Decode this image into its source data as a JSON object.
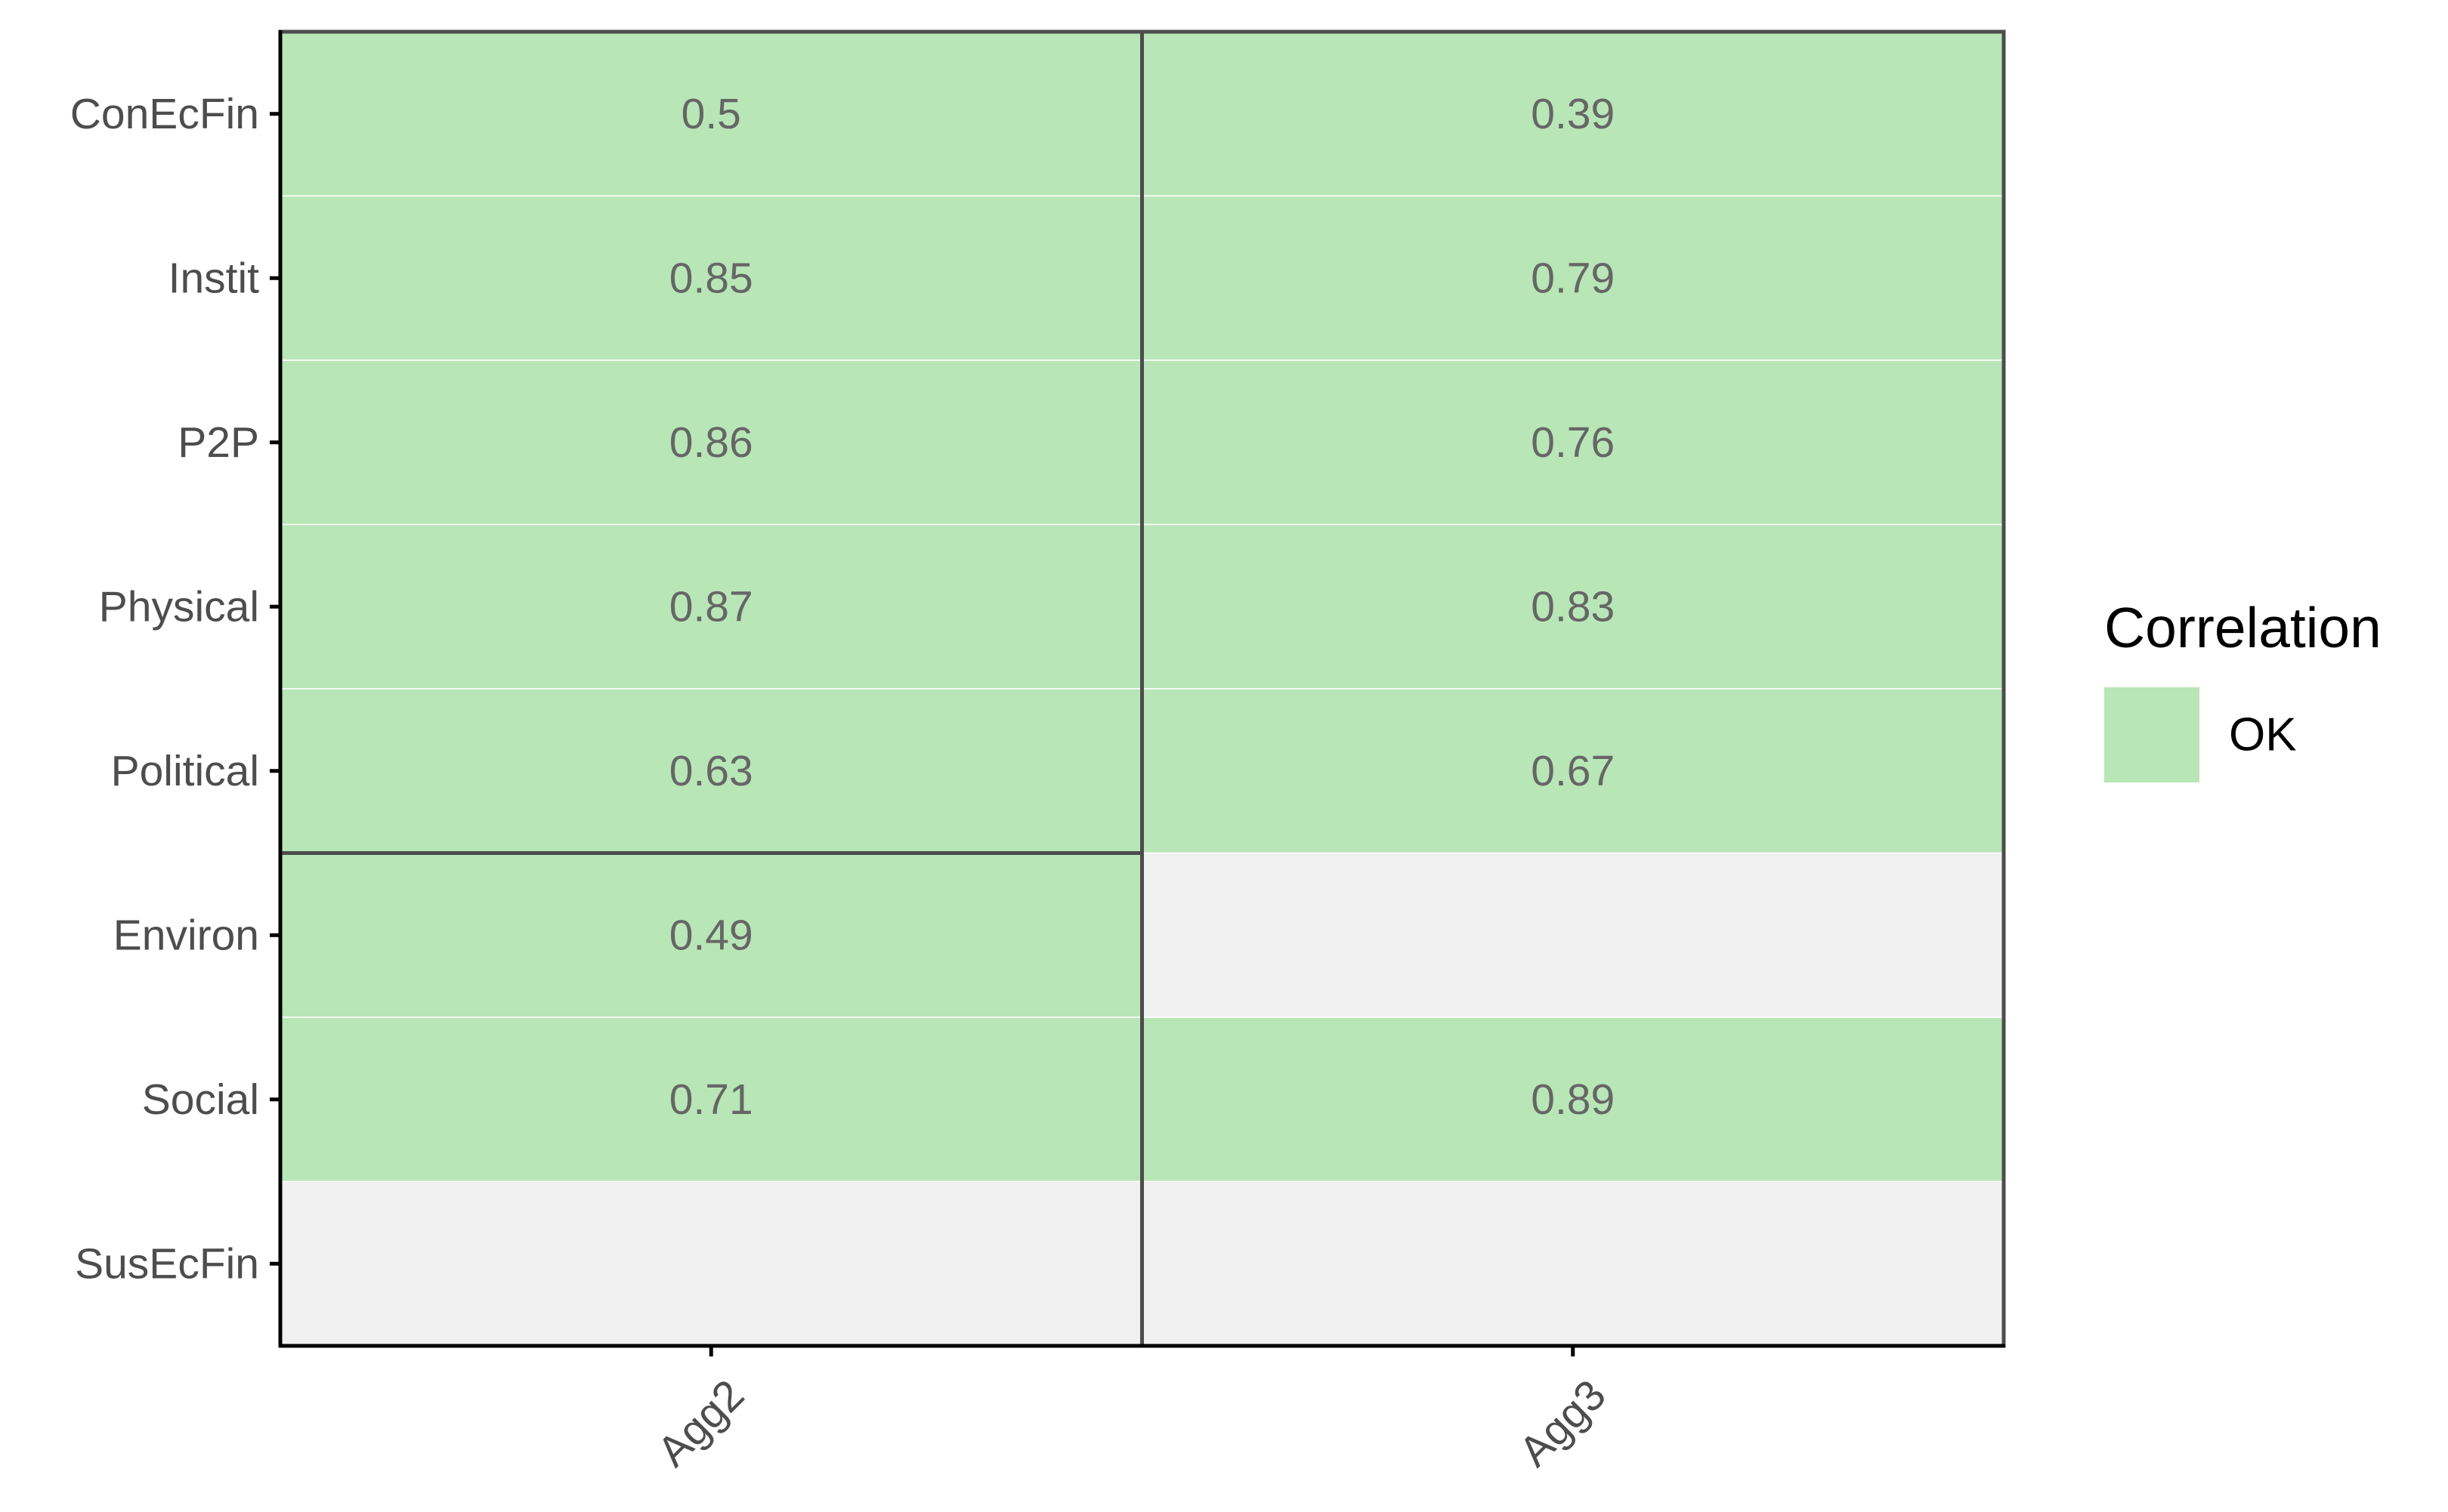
{
  "chart_data": {
    "type": "heatmap",
    "x_categories": [
      "Agg2",
      "Agg3"
    ],
    "y_categories": [
      "ConEcFin",
      "Instit",
      "P2P",
      "Physical",
      "Political",
      "Environ",
      "Social",
      "SusEcFin"
    ],
    "cells": [
      {
        "x": "Agg2",
        "y": "ConEcFin",
        "value": 0.5,
        "label": "0.5",
        "status": "OK"
      },
      {
        "x": "Agg3",
        "y": "ConEcFin",
        "value": 0.39,
        "label": "0.39",
        "status": "OK"
      },
      {
        "x": "Agg2",
        "y": "Instit",
        "value": 0.85,
        "label": "0.85",
        "status": "OK"
      },
      {
        "x": "Agg3",
        "y": "Instit",
        "value": 0.79,
        "label": "0.79",
        "status": "OK"
      },
      {
        "x": "Agg2",
        "y": "P2P",
        "value": 0.86,
        "label": "0.86",
        "status": "OK"
      },
      {
        "x": "Agg3",
        "y": "P2P",
        "value": 0.76,
        "label": "0.76",
        "status": "OK"
      },
      {
        "x": "Agg2",
        "y": "Physical",
        "value": 0.87,
        "label": "0.87",
        "status": "OK"
      },
      {
        "x": "Agg3",
        "y": "Physical",
        "value": 0.83,
        "label": "0.83",
        "status": "OK"
      },
      {
        "x": "Agg2",
        "y": "Political",
        "value": 0.63,
        "label": "0.63",
        "status": "OK"
      },
      {
        "x": "Agg3",
        "y": "Political",
        "value": 0.67,
        "label": "0.67",
        "status": "OK"
      },
      {
        "x": "Agg2",
        "y": "Environ",
        "value": 0.49,
        "label": "0.49",
        "status": "OK"
      },
      {
        "x": "Agg3",
        "y": "Environ",
        "value": null,
        "label": "",
        "status": null
      },
      {
        "x": "Agg2",
        "y": "Social",
        "value": 0.71,
        "label": "0.71",
        "status": "OK"
      },
      {
        "x": "Agg3",
        "y": "Social",
        "value": 0.89,
        "label": "0.89",
        "status": "OK"
      },
      {
        "x": "Agg2",
        "y": "SusEcFin",
        "value": null,
        "label": "",
        "status": null
      },
      {
        "x": "Agg3",
        "y": "SusEcFin",
        "value": null,
        "label": "",
        "status": null
      }
    ],
    "groups": [
      {
        "x": "Agg2",
        "y_from": "ConEcFin",
        "y_to": "Political"
      },
      {
        "x": "Agg2",
        "y_from": "Environ",
        "y_to": "SusEcFin"
      },
      {
        "x": "Agg3",
        "y_from": "ConEcFin",
        "y_to": "SusEcFin"
      }
    ],
    "legend": {
      "title": "Correlation",
      "position": "right",
      "entries": [
        {
          "label": "OK",
          "color": "#b8e6b6"
        }
      ]
    },
    "colors": {
      "ok": "#b8e6b6",
      "empty": "#f0f0f0",
      "group_border": "#4d4d4d",
      "axis": "#000000"
    },
    "grid": false,
    "x_tick_rotation_deg": -45
  }
}
